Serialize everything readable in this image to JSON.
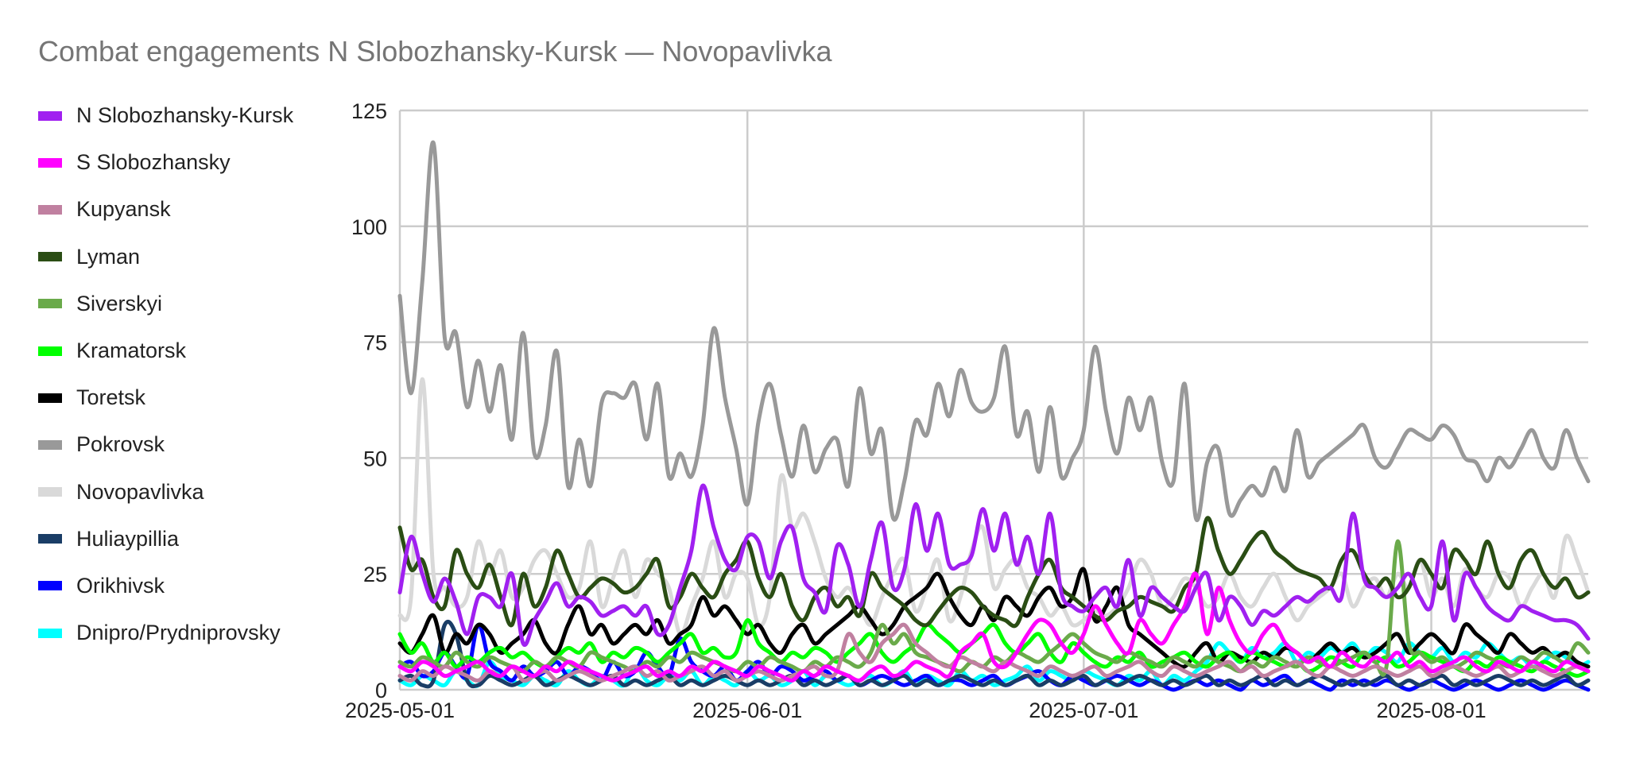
{
  "chart_data": {
    "type": "line",
    "title": "Combat engagements N Slobozhansky-Kursk — Novopavlivka",
    "xlabel": "",
    "ylabel": "",
    "x_start": "2025-05-01",
    "x_end": "2025-08-15",
    "ylim": [
      0,
      125
    ],
    "yticks": [
      0,
      25,
      50,
      75,
      100,
      125
    ],
    "xticks": [
      "2025-05-01",
      "2025-06-01",
      "2025-07-01",
      "2025-08-01"
    ],
    "grid": true,
    "legend_position": "left",
    "series": [
      {
        "name": "N Slobozhansky-Kursk",
        "color": "#a020f0",
        "values": [
          21,
          33,
          25,
          19,
          24,
          19,
          12,
          20,
          20,
          18,
          25,
          10,
          15,
          19,
          23,
          18,
          20,
          19,
          16,
          17,
          18,
          16,
          18,
          12,
          14,
          22,
          30,
          44,
          35,
          28,
          26,
          33,
          32,
          24,
          32,
          35,
          24,
          21,
          17,
          31,
          27,
          18,
          28,
          36,
          22,
          26,
          40,
          30,
          38,
          27,
          27,
          29,
          39,
          30,
          38,
          27,
          33,
          25,
          38,
          21,
          18,
          17,
          20,
          22,
          18,
          28,
          16,
          22,
          20,
          18,
          17,
          22,
          25,
          15,
          20,
          18,
          14,
          17,
          16,
          18,
          20,
          19,
          21,
          22,
          20,
          38,
          24,
          22,
          20,
          22,
          25,
          20,
          18,
          32,
          15,
          25,
          22,
          18,
          16,
          15,
          18,
          17,
          16,
          15,
          15,
          14,
          11
        ]
      },
      {
        "name": "S Slobozhansky",
        "color": "#ff00ff",
        "values": [
          5,
          4,
          6,
          5,
          3,
          4,
          5,
          6,
          4,
          3,
          5,
          4,
          3,
          5,
          4,
          6,
          5,
          4,
          3,
          2,
          3,
          4,
          5,
          3,
          4,
          3,
          5,
          4,
          6,
          5,
          4,
          3,
          5,
          4,
          3,
          2,
          4,
          3,
          5,
          4,
          3,
          2,
          4,
          5,
          3,
          4,
          6,
          5,
          4,
          3,
          8,
          10,
          12,
          6,
          5,
          8,
          12,
          15,
          14,
          10,
          8,
          12,
          18,
          14,
          10,
          8,
          15,
          12,
          10,
          14,
          18,
          25,
          12,
          22,
          15,
          10,
          8,
          12,
          14,
          10,
          8,
          6,
          7,
          5,
          8,
          6,
          5,
          7,
          6,
          8,
          5,
          6,
          4,
          5,
          6,
          7,
          5,
          4,
          6,
          5,
          4,
          6,
          5,
          4,
          6,
          5,
          4
        ]
      },
      {
        "name": "Kupyansk",
        "color": "#c080a0",
        "values": [
          3,
          2,
          4,
          3,
          5,
          4,
          3,
          2,
          4,
          3,
          5,
          2,
          3,
          4,
          2,
          3,
          4,
          3,
          2,
          3,
          4,
          5,
          3,
          4,
          2,
          3,
          4,
          5,
          3,
          4,
          2,
          3,
          4,
          3,
          2,
          3,
          4,
          5,
          3,
          4,
          12,
          8,
          6,
          10,
          12,
          14,
          10,
          8,
          6,
          5,
          7,
          6,
          5,
          4,
          6,
          5,
          4,
          3,
          5,
          4,
          3,
          4,
          5,
          3,
          4,
          5,
          6,
          4,
          3,
          5,
          4,
          3,
          4,
          5,
          6,
          4,
          5,
          3,
          4,
          5,
          6,
          4,
          3,
          5,
          4,
          3,
          4,
          5,
          4,
          3,
          4,
          5,
          3,
          4,
          5,
          4,
          3,
          4,
          5,
          3,
          4,
          5,
          4,
          3,
          4,
          5,
          4
        ]
      },
      {
        "name": "Lyman",
        "color": "#2a4d14",
        "values": [
          35,
          26,
          28,
          20,
          18,
          30,
          25,
          22,
          27,
          20,
          14,
          25,
          18,
          22,
          30,
          25,
          20,
          22,
          24,
          23,
          21,
          22,
          25,
          28,
          18,
          20,
          25,
          22,
          20,
          25,
          28,
          32,
          24,
          20,
          25,
          18,
          15,
          20,
          22,
          18,
          20,
          16,
          25,
          22,
          20,
          18,
          15,
          14,
          17,
          20,
          22,
          21,
          18,
          16,
          15,
          14,
          20,
          25,
          28,
          22,
          20,
          18,
          16,
          15,
          17,
          18,
          20,
          19,
          18,
          17,
          22,
          25,
          37,
          30,
          25,
          28,
          32,
          34,
          30,
          28,
          26,
          25,
          24,
          22,
          28,
          30,
          25,
          22,
          24,
          20,
          22,
          28,
          25,
          22,
          30,
          28,
          25,
          32,
          25,
          22,
          28,
          30,
          25,
          22,
          24,
          20,
          21
        ]
      },
      {
        "name": "Siverskyi",
        "color": "#6aaa4a",
        "values": [
          6,
          5,
          7,
          6,
          5,
          8,
          6,
          5,
          7,
          6,
          5,
          4,
          6,
          5,
          7,
          6,
          5,
          8,
          7,
          6,
          5,
          4,
          6,
          5,
          7,
          6,
          8,
          7,
          6,
          5,
          4,
          6,
          5,
          7,
          6,
          5,
          4,
          6,
          5,
          7,
          6,
          5,
          8,
          14,
          10,
          12,
          8,
          7,
          6,
          5,
          4,
          6,
          5,
          7,
          6,
          8,
          7,
          6,
          8,
          10,
          12,
          10,
          8,
          7,
          6,
          8,
          7,
          6,
          5,
          7,
          6,
          5,
          7,
          6,
          5,
          4,
          6,
          5,
          7,
          6,
          5,
          7,
          6,
          5,
          6,
          7,
          8,
          6,
          5,
          32,
          10,
          8,
          6,
          7,
          5,
          6,
          8,
          7,
          6,
          5,
          7,
          6,
          8,
          7,
          6,
          10,
          8
        ]
      },
      {
        "name": "Kramatorsk",
        "color": "#00ff00",
        "values": [
          12,
          8,
          10,
          6,
          8,
          5,
          7,
          6,
          8,
          9,
          7,
          8,
          6,
          5,
          7,
          9,
          8,
          10,
          6,
          8,
          7,
          9,
          8,
          6,
          8,
          10,
          12,
          8,
          9,
          7,
          8,
          15,
          10,
          8,
          6,
          8,
          7,
          9,
          8,
          6,
          8,
          10,
          12,
          8,
          6,
          8,
          10,
          14,
          12,
          10,
          8,
          10,
          12,
          14,
          10,
          8,
          10,
          12,
          8,
          6,
          10,
          8,
          6,
          5,
          7,
          6,
          8,
          5,
          6,
          7,
          8,
          6,
          5,
          7,
          8,
          6,
          8,
          7,
          6,
          5,
          6,
          4,
          5,
          7,
          6,
          5,
          8,
          6,
          7,
          5,
          6,
          8,
          7,
          6,
          5,
          4,
          6,
          5,
          7,
          6,
          5,
          4,
          6,
          5,
          4,
          3,
          4
        ]
      },
      {
        "name": "Toretsk",
        "color": "#000000",
        "values": [
          10,
          8,
          12,
          16,
          8,
          12,
          10,
          14,
          12,
          8,
          10,
          12,
          15,
          10,
          8,
          14,
          18,
          12,
          14,
          10,
          12,
          14,
          12,
          15,
          10,
          12,
          14,
          20,
          16,
          18,
          15,
          12,
          14,
          10,
          8,
          12,
          14,
          10,
          12,
          14,
          16,
          18,
          15,
          12,
          14,
          18,
          20,
          22,
          25,
          20,
          16,
          14,
          18,
          15,
          20,
          18,
          16,
          20,
          22,
          18,
          20,
          26,
          15,
          18,
          22,
          14,
          12,
          10,
          8,
          6,
          5,
          8,
          10,
          6,
          8,
          7,
          6,
          8,
          7,
          9,
          8,
          6,
          8,
          10,
          8,
          9,
          7,
          8,
          10,
          12,
          8,
          10,
          12,
          10,
          8,
          14,
          12,
          10,
          8,
          12,
          10,
          8,
          9,
          7,
          8,
          6,
          5
        ]
      },
      {
        "name": "Pokrovsk",
        "color": "#999999",
        "values": [
          85,
          64,
          88,
          118,
          76,
          77,
          61,
          71,
          60,
          70,
          54,
          77,
          51,
          57,
          73,
          44,
          54,
          44,
          62,
          64,
          63,
          66,
          54,
          66,
          46,
          51,
          46,
          57,
          78,
          63,
          52,
          40,
          58,
          66,
          55,
          46,
          57,
          47,
          52,
          54,
          44,
          65,
          51,
          56,
          37,
          45,
          58,
          55,
          66,
          59,
          69,
          62,
          60,
          63,
          74,
          55,
          60,
          47,
          61,
          46,
          50,
          56,
          74,
          60,
          51,
          63,
          56,
          63,
          49,
          45,
          66,
          37,
          49,
          52,
          38,
          41,
          44,
          42,
          48,
          43,
          56,
          46,
          49,
          51,
          53,
          55,
          57,
          50,
          48,
          52,
          56,
          55,
          54,
          57,
          55,
          50,
          49,
          45,
          50,
          48,
          52,
          56,
          50,
          48,
          56,
          50,
          45
        ]
      },
      {
        "name": "Novopavlivka",
        "color": "#d9d9d9",
        "values": [
          16,
          20,
          67,
          25,
          22,
          18,
          20,
          32,
          25,
          30,
          20,
          22,
          28,
          30,
          25,
          20,
          22,
          32,
          18,
          24,
          30,
          20,
          28,
          25,
          22,
          12,
          18,
          24,
          32,
          20,
          25,
          24,
          14,
          20,
          46,
          35,
          38,
          32,
          24,
          20,
          22,
          18,
          14,
          20,
          25,
          28,
          17,
          22,
          28,
          15,
          20,
          30,
          35,
          22,
          26,
          28,
          22,
          20,
          16,
          18,
          14,
          15,
          17,
          16,
          18,
          22,
          28,
          25,
          18,
          20,
          24,
          22,
          18,
          20,
          25,
          20,
          18,
          22,
          25,
          20,
          15,
          18,
          20,
          22,
          25,
          18,
          22,
          24,
          20,
          25,
          22,
          28,
          20,
          24,
          18,
          26,
          22,
          20,
          25,
          24,
          18,
          22,
          25,
          20,
          33,
          28,
          21
        ]
      },
      {
        "name": "Huliaypillia",
        "color": "#1a3d66",
        "values": [
          2,
          3,
          1,
          2,
          14,
          12,
          2,
          1,
          3,
          2,
          1,
          2,
          3,
          1,
          2,
          3,
          2,
          1,
          2,
          3,
          1,
          2,
          1,
          2,
          3,
          1,
          2,
          1,
          2,
          3,
          2,
          1,
          2,
          1,
          2,
          3,
          1,
          2,
          1,
          2,
          3,
          1,
          2,
          1,
          2,
          3,
          1,
          2,
          1,
          2,
          3,
          2,
          1,
          2,
          1,
          2,
          3,
          1,
          2,
          1,
          2,
          3,
          1,
          2,
          1,
          2,
          3,
          2,
          1,
          2,
          1,
          2,
          3,
          1,
          2,
          1,
          2,
          3,
          1,
          2,
          1,
          2,
          3,
          2,
          1,
          2,
          1,
          2,
          3,
          1,
          2,
          1,
          2,
          3,
          1,
          2,
          1,
          2,
          3,
          2,
          1,
          2,
          1,
          2,
          3,
          1,
          2
        ]
      },
      {
        "name": "Orikhivsk",
        "color": "#0000ff",
        "values": [
          5,
          6,
          3,
          4,
          8,
          5,
          3,
          14,
          6,
          4,
          2,
          5,
          3,
          4,
          6,
          3,
          5,
          4,
          2,
          6,
          3,
          4,
          8,
          5,
          3,
          11,
          6,
          4,
          3,
          5,
          2,
          4,
          6,
          3,
          5,
          4,
          2,
          3,
          4,
          2,
          3,
          1,
          2,
          3,
          2,
          1,
          2,
          3,
          1,
          2,
          2,
          1,
          2,
          3,
          1,
          2,
          3,
          4,
          2,
          1,
          3,
          2,
          1,
          2,
          3,
          2,
          1,
          2,
          1,
          0,
          1,
          2,
          1,
          2,
          1,
          0,
          2,
          1,
          2,
          3,
          1,
          2,
          1,
          0,
          2,
          1,
          2,
          1,
          2,
          1,
          0,
          1,
          2,
          1,
          0,
          1,
          2,
          1,
          0,
          1,
          2,
          1,
          0,
          1,
          2,
          1,
          0
        ]
      },
      {
        "name": "Dnipro/Prydniprovsky",
        "color": "#00ffff",
        "values": [
          2,
          1,
          3,
          2,
          1,
          4,
          2,
          1,
          6,
          3,
          2,
          1,
          3,
          2,
          1,
          4,
          2,
          1,
          3,
          2,
          1,
          5,
          2,
          1,
          3,
          2,
          4,
          1,
          3,
          2,
          1,
          4,
          2,
          3,
          1,
          2,
          4,
          1,
          3,
          2,
          1,
          2,
          3,
          1,
          2,
          4,
          1,
          3,
          2,
          1,
          4,
          2,
          3,
          1,
          2,
          3,
          5,
          2,
          4,
          3,
          2,
          4,
          3,
          2,
          1,
          3,
          2,
          4,
          1,
          3,
          2,
          4,
          6,
          10,
          8,
          6,
          9,
          7,
          8,
          10,
          6,
          8,
          7,
          9,
          8,
          10,
          7,
          9,
          8,
          6,
          10,
          8,
          7,
          9,
          6,
          8,
          7,
          10,
          8,
          6,
          7,
          5,
          6,
          8,
          7,
          5,
          6
        ]
      }
    ]
  }
}
